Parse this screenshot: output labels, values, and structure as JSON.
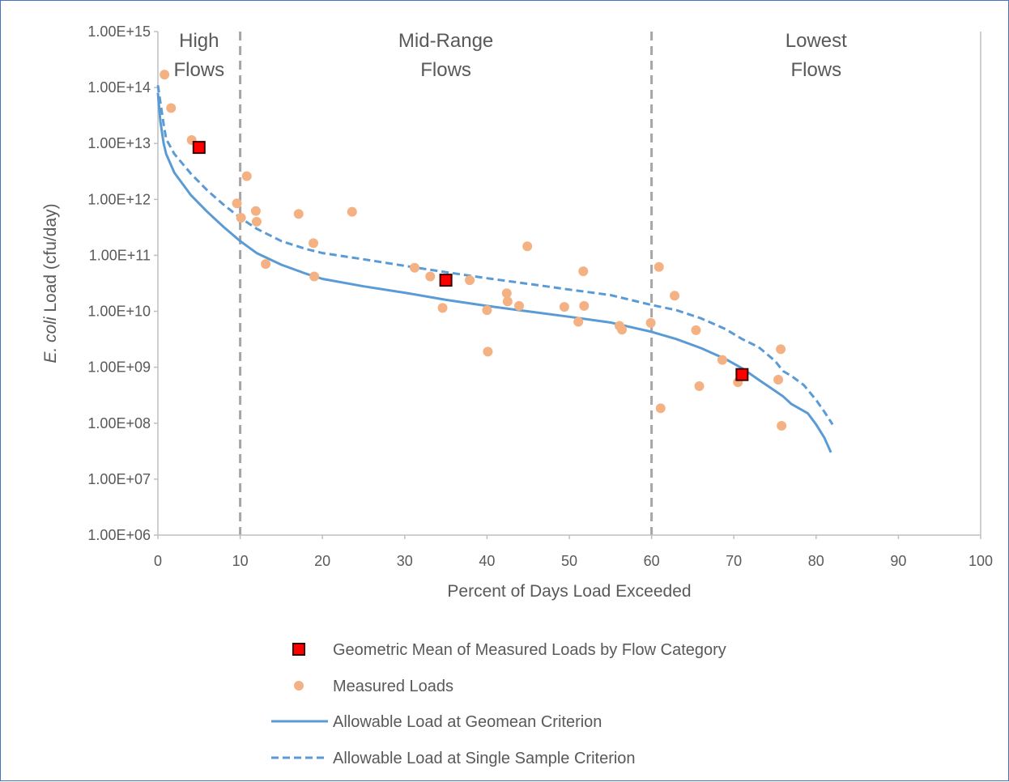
{
  "chart_data": {
    "type": "scatter",
    "title": "",
    "xlabel": "Percent of Days Load Exceeded",
    "ylabel_italic": "E. coli",
    "ylabel_rest": " Load (cfu/day)",
    "xlim": [
      0,
      100
    ],
    "ylim": [
      1000000,
      1000000000000000
    ],
    "y_scale": "log",
    "grid": false,
    "x_ticks": [
      "0",
      "10",
      "20",
      "30",
      "40",
      "50",
      "60",
      "70",
      "80",
      "90",
      "100"
    ],
    "x_tick_values": [
      0,
      10,
      20,
      30,
      40,
      50,
      60,
      70,
      80,
      90,
      100
    ],
    "y_ticks": [
      "1.00E+06",
      "1.00E+07",
      "1.00E+08",
      "1.00E+09",
      "1.00E+10",
      "1.00E+11",
      "1.00E+12",
      "1.00E+13",
      "1.00E+14",
      "1.00E+15"
    ],
    "y_tick_values": [
      1000000,
      10000000,
      100000000,
      1000000000,
      10000000000,
      100000000000,
      1000000000000,
      10000000000000,
      100000000000000,
      1000000000000000
    ],
    "regions": [
      {
        "label_line1": "High",
        "label_line2": "Flows",
        "x_from": 0,
        "x_to": 10
      },
      {
        "label_line1": "Mid-Range",
        "label_line2": "Flows",
        "x_from": 10,
        "x_to": 60
      },
      {
        "label_line1": "Lowest",
        "label_line2": "Flows",
        "x_from": 60,
        "x_to": 100
      }
    ],
    "boundaries": [
      10,
      60
    ],
    "legend_position": "bottom",
    "series": [
      {
        "name": "Geometric Mean of Measured Loads by Flow Category",
        "kind": "marker-square",
        "color": "#ff0000",
        "edge_color": "#3a0000",
        "points": [
          [
            5,
            8500000000000
          ],
          [
            35,
            36000000000
          ],
          [
            71,
            740000000
          ]
        ]
      },
      {
        "name": "Measured Loads",
        "kind": "marker-circle",
        "color": "#f4b183",
        "points": [
          [
            0.8,
            170000000000000
          ],
          [
            1.6,
            43000000000000
          ],
          [
            4.1,
            11500000000000
          ],
          [
            9.6,
            850000000000
          ],
          [
            10.1,
            470000000000
          ],
          [
            10.8,
            2600000000000
          ],
          [
            11.9,
            620000000000
          ],
          [
            12.0,
            400000000000
          ],
          [
            13.1,
            70000000000
          ],
          [
            17.1,
            550000000000
          ],
          [
            18.9,
            165000000000
          ],
          [
            19.0,
            42000000000
          ],
          [
            23.6,
            600000000000
          ],
          [
            31.2,
            60000000000
          ],
          [
            33.1,
            42000000000
          ],
          [
            34.6,
            11500000000
          ],
          [
            37.9,
            36000000000
          ],
          [
            40.0,
            10500000000
          ],
          [
            40.1,
            1900000000
          ],
          [
            42.4,
            21000000000
          ],
          [
            42.5,
            15000000000
          ],
          [
            43.9,
            12500000000
          ],
          [
            44.9,
            145000000000
          ],
          [
            49.4,
            12000000000
          ],
          [
            51.1,
            6500000000
          ],
          [
            51.7,
            52000000000
          ],
          [
            51.8,
            12500000000
          ],
          [
            56.1,
            5500000000
          ],
          [
            56.4,
            4700000000
          ],
          [
            59.9,
            6200000000
          ],
          [
            60.9,
            62000000000
          ],
          [
            61.1,
            185000000
          ],
          [
            62.8,
            19000000000
          ],
          [
            65.4,
            4600000000
          ],
          [
            65.8,
            460000000
          ],
          [
            68.6,
            1350000000
          ],
          [
            70.5,
            540000000
          ],
          [
            75.4,
            600000000
          ],
          [
            75.7,
            2100000000
          ],
          [
            75.8,
            90000000
          ]
        ]
      },
      {
        "name": "Allowable Load at Geomean Criterion",
        "kind": "line-solid",
        "color": "#5b9bd5",
        "points": [
          [
            0,
            80000000000000
          ],
          [
            0.3,
            25000000000000
          ],
          [
            0.7,
            10000000000000
          ],
          [
            1.0,
            6500000000000
          ],
          [
            2,
            3000000000000
          ],
          [
            4,
            1200000000000
          ],
          [
            6,
            600000000000
          ],
          [
            8,
            320000000000
          ],
          [
            10,
            180000000000
          ],
          [
            12,
            110000000000
          ],
          [
            15,
            68000000000
          ],
          [
            18,
            47000000000
          ],
          [
            20,
            38000000000
          ],
          [
            25,
            28000000000
          ],
          [
            30,
            21500000000
          ],
          [
            35,
            16000000000
          ],
          [
            40,
            12500000000
          ],
          [
            45,
            10000000000
          ],
          [
            50,
            8000000000
          ],
          [
            55,
            6300000000
          ],
          [
            60,
            4300000000
          ],
          [
            63,
            3200000000
          ],
          [
            66,
            2200000000
          ],
          [
            69,
            1400000000
          ],
          [
            71,
            960000000
          ],
          [
            73,
            600000000
          ],
          [
            75,
            380000000
          ],
          [
            76,
            300000000
          ],
          [
            77,
            220000000
          ],
          [
            79,
            150000000
          ],
          [
            80,
            95000000
          ],
          [
            81,
            55000000
          ],
          [
            81.8,
            30000000
          ]
        ]
      },
      {
        "name": "Allowable Load at Single Sample Criterion",
        "kind": "line-dashed",
        "color": "#5b9bd5",
        "points": [
          [
            0,
            110000000000000
          ],
          [
            0.3,
            55000000000000
          ],
          [
            0.7,
            22000000000000
          ],
          [
            1.0,
            12000000000000
          ],
          [
            2,
            6500000000000
          ],
          [
            4,
            2900000000000
          ],
          [
            6,
            1450000000000
          ],
          [
            8,
            800000000000
          ],
          [
            10,
            470000000000
          ],
          [
            12,
            300000000000
          ],
          [
            15,
            180000000000
          ],
          [
            18,
            130000000000
          ],
          [
            20,
            110000000000
          ],
          [
            25,
            85000000000
          ],
          [
            30,
            65000000000
          ],
          [
            35,
            50000000000
          ],
          [
            40,
            39000000000
          ],
          [
            45,
            31000000000
          ],
          [
            50,
            24500000000
          ],
          [
            55,
            19500000000
          ],
          [
            60,
            13000000000
          ],
          [
            63,
            10500000000
          ],
          [
            66,
            7500000000
          ],
          [
            69,
            4800000000
          ],
          [
            71,
            3200000000
          ],
          [
            73,
            2300000000
          ],
          [
            75,
            1300000000
          ],
          [
            76,
            850000000
          ],
          [
            77,
            700000000
          ],
          [
            78.5,
            480000000
          ],
          [
            80,
            260000000
          ],
          [
            81,
            160000000
          ],
          [
            82,
            95000000
          ]
        ]
      }
    ]
  }
}
